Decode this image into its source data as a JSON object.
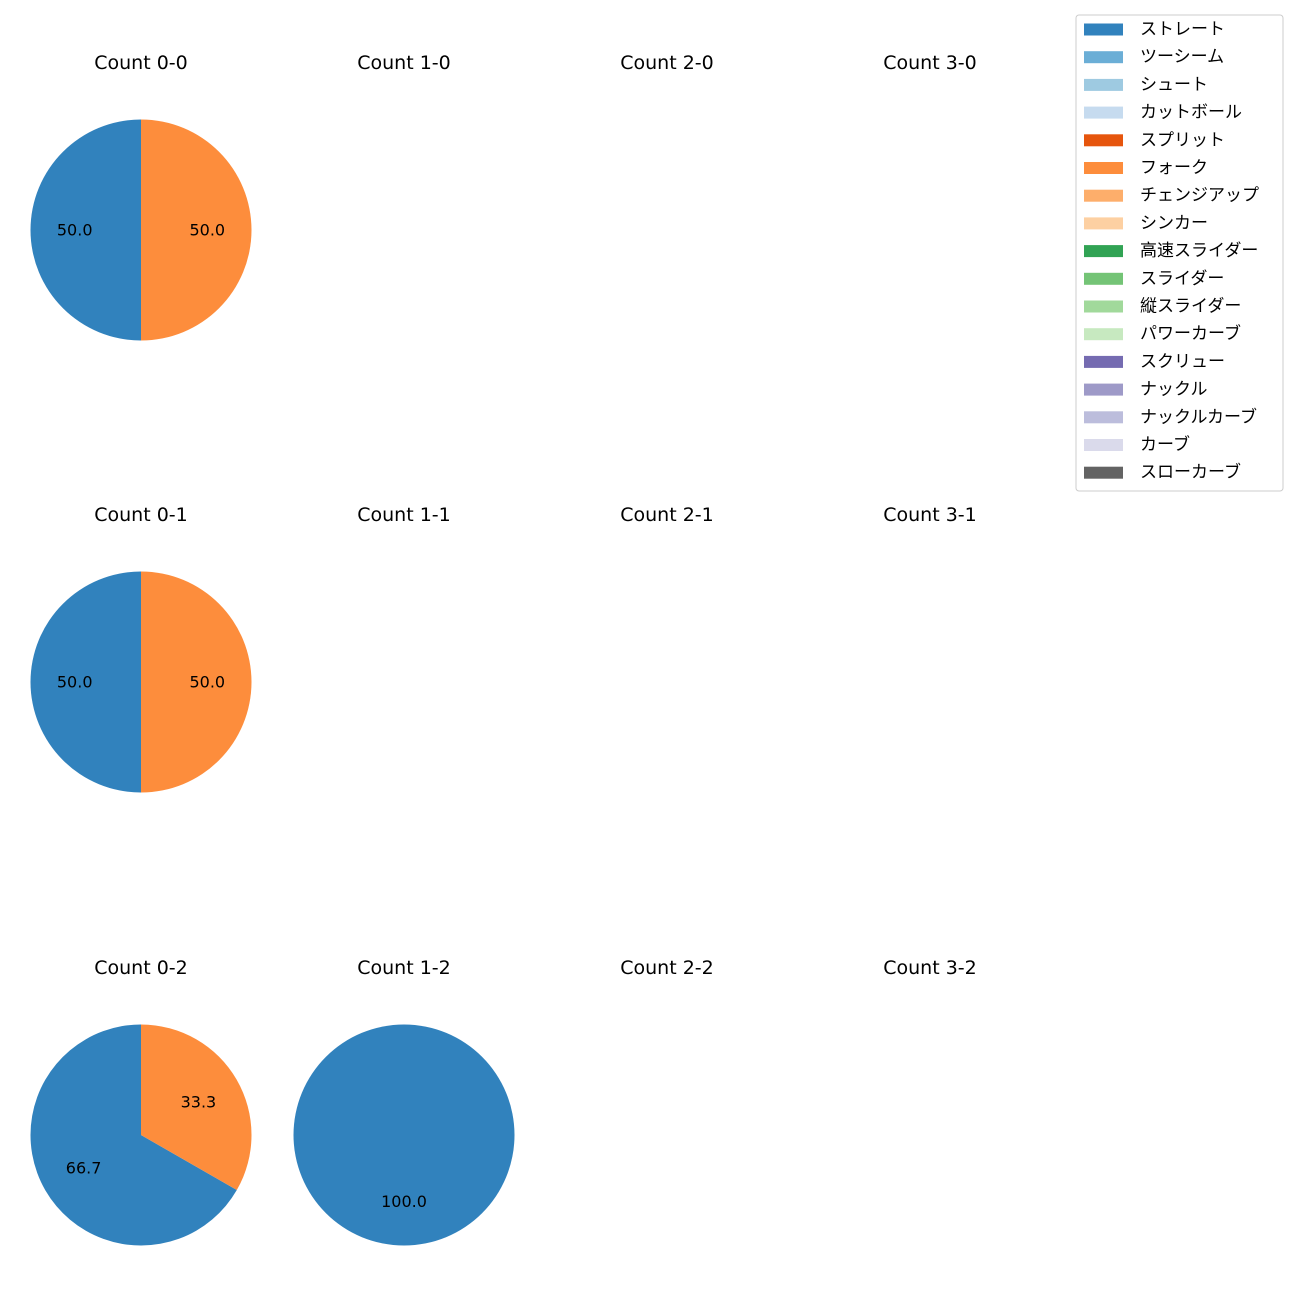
{
  "legend": {
    "entries": [
      {
        "label": "ストレート",
        "color": "#3182bd"
      },
      {
        "label": "ツーシーム",
        "color": "#6baed6"
      },
      {
        "label": "シュート",
        "color": "#9ecae1"
      },
      {
        "label": "カットボール",
        "color": "#c6dbef"
      },
      {
        "label": "スプリット",
        "color": "#e6550d"
      },
      {
        "label": "フォーク",
        "color": "#fd8d3c"
      },
      {
        "label": "チェンジアップ",
        "color": "#fdae6b"
      },
      {
        "label": "シンカー",
        "color": "#fdd0a2"
      },
      {
        "label": "高速スライダー",
        "color": "#31a354"
      },
      {
        "label": "スライダー",
        "color": "#74c476"
      },
      {
        "label": "縦スライダー",
        "color": "#a1d99b"
      },
      {
        "label": "パワーカーブ",
        "color": "#c7e9c0"
      },
      {
        "label": "スクリュー",
        "color": "#756bb1"
      },
      {
        "label": "ナックル",
        "color": "#9e9ac8"
      },
      {
        "label": "ナックルカーブ",
        "color": "#bcbddc"
      },
      {
        "label": "カーブ",
        "color": "#dadaeb"
      },
      {
        "label": "スローカーブ",
        "color": "#636363"
      }
    ]
  },
  "chart_data": [
    {
      "type": "pie",
      "title": "Count 0-0",
      "slices": [
        {
          "label": "ストレート",
          "value": 50.0
        },
        {
          "label": "フォーク",
          "value": 50.0
        }
      ]
    },
    {
      "type": "pie",
      "title": "Count 1-0",
      "slices": []
    },
    {
      "type": "pie",
      "title": "Count 2-0",
      "slices": []
    },
    {
      "type": "pie",
      "title": "Count 3-0",
      "slices": []
    },
    {
      "type": "pie",
      "title": "Count 0-1",
      "slices": [
        {
          "label": "ストレート",
          "value": 50.0
        },
        {
          "label": "フォーク",
          "value": 50.0
        }
      ]
    },
    {
      "type": "pie",
      "title": "Count 1-1",
      "slices": []
    },
    {
      "type": "pie",
      "title": "Count 2-1",
      "slices": []
    },
    {
      "type": "pie",
      "title": "Count 3-1",
      "slices": []
    },
    {
      "type": "pie",
      "title": "Count 0-2",
      "slices": [
        {
          "label": "ストレート",
          "value": 66.7
        },
        {
          "label": "フォーク",
          "value": 33.3
        }
      ]
    },
    {
      "type": "pie",
      "title": "Count 1-2",
      "slices": [
        {
          "label": "ストレート",
          "value": 100.0
        }
      ]
    },
    {
      "type": "pie",
      "title": "Count 2-2",
      "slices": []
    },
    {
      "type": "pie",
      "title": "Count 3-2",
      "slices": []
    }
  ]
}
